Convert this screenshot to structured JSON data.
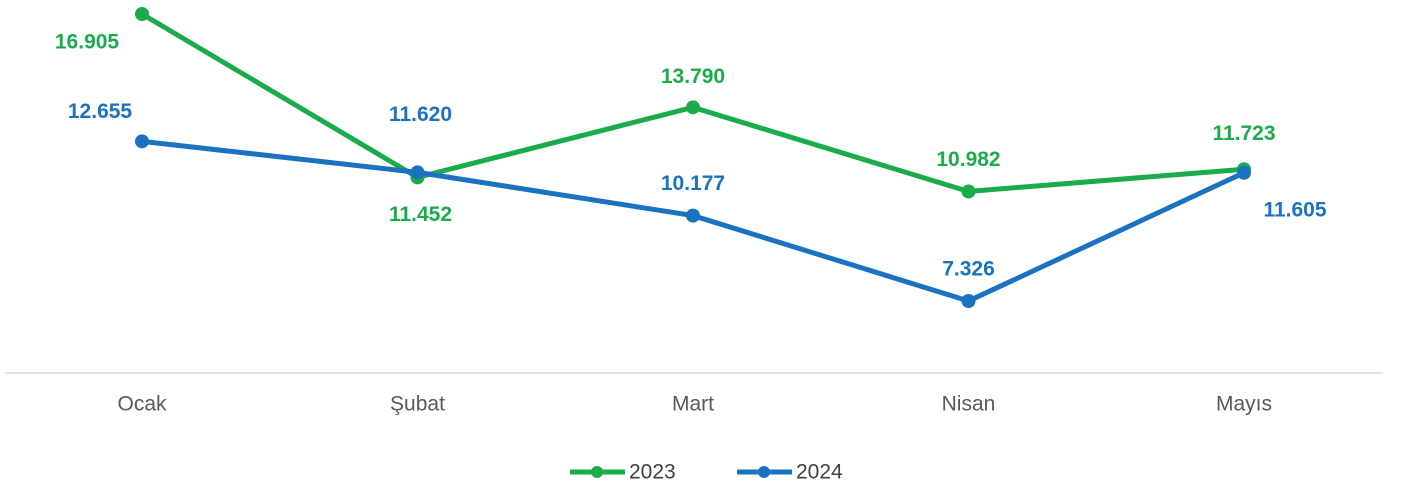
{
  "chart_data": {
    "type": "line",
    "categories": [
      "Ocak",
      "Şubat",
      "Mart",
      "Nisan",
      "Mayıs"
    ],
    "series": [
      {
        "name": "2023",
        "color": "#1aab4b",
        "values": [
          16905,
          11452,
          13790,
          10982,
          11723
        ],
        "value_labels": [
          "16.905",
          "11.452",
          "13.790",
          "10.982",
          "11.723"
        ]
      },
      {
        "name": "2024",
        "color": "#1a72c0",
        "values": [
          12655,
          11620,
          10177,
          7326,
          11605
        ],
        "value_labels": [
          "12.655",
          "11.620",
          "10.177",
          "7.326",
          "11.605"
        ]
      }
    ],
    "legend": "bottom"
  }
}
